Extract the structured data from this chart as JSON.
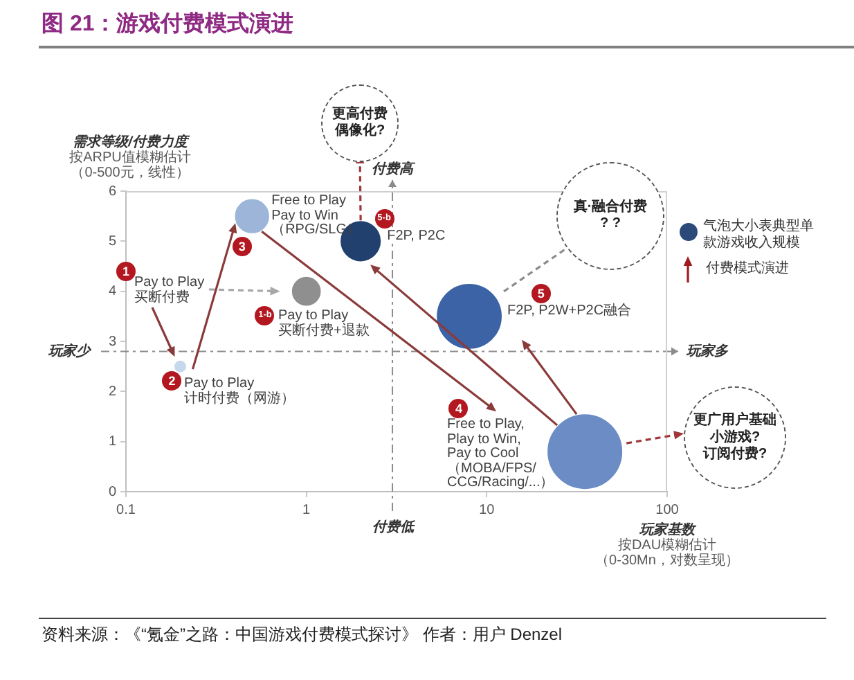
{
  "chart_data": {
    "type": "bubble",
    "title": "图 21：游戏付费模式演进",
    "xlabel": "玩家基数",
    "ylabel": "需求等级/付费力度",
    "x": [
      0.2,
      0.5,
      1,
      2,
      8,
      35
    ],
    "values": [
      2.5,
      5.5,
      4,
      5,
      3.5,
      0.8
    ],
    "sizes": [
      0.02,
      0.2,
      0.14,
      0.28,
      0.75,
      1
    ],
    "colors": [
      "#c6d9ec",
      "#9cb5d8",
      "#8f8f8f",
      "#22406e",
      "#3c63a5",
      "#6b8cc5"
    ],
    "log": "x",
    "xlim": [
      0.1,
      100
    ],
    "xticks": [
      0.1,
      1,
      10,
      100
    ],
    "ylim": [
      0,
      6
    ],
    "yticks": [
      0,
      1,
      2,
      3,
      4,
      5,
      6
    ],
    "ref_lines": [
      {
        "axis": "y",
        "value": 2.8,
        "label": "玩家多",
        "color": "#8c8c8c",
        "line_style": "dashed"
      },
      {
        "axis": "x",
        "value": 3,
        "label": "付费高",
        "color": "#8c8c8c",
        "line_style": "dashed"
      }
    ],
    "annotations": [
      {
        "text": "1",
        "x": 0.1,
        "y": 4.4
      },
      {
        "text": "2",
        "x": 0.18,
        "y": 2.2
      },
      {
        "text": "3",
        "x": 0.44,
        "y": 4.9
      },
      {
        "text": "1-b",
        "x": 0.59,
        "y": 3.5
      },
      {
        "text": "5-b",
        "x": 2.7,
        "y": 5.45
      },
      {
        "text": "4",
        "x": 7,
        "y": 1.65
      },
      {
        "text": "5",
        "x": 20,
        "y": 3.95
      },
      "Pay to Play\n买断付费",
      "Pay to Play\n计时付费（网游）",
      {
        "text": "Free to Play\nPay to Win\n（RPG/SLG）",
        "x": 0.64,
        "y": 5.5
      },
      "Pay to Play\n买断付费+退款",
      {
        "text": "F2P, P2C",
        "x": 2.8,
        "y": 5.1
      },
      {
        "text": "F2P, P2W+P2C融合",
        "x": 13,
        "y": 3.6
      },
      "Free to Play,\nPlay to Win,\nPay to Cool\n（MOBA/FPS/\nCCG/Racing/...）",
      "玩家少",
      "付费低",
      "更高付费偶像化?",
      "真·融合付费\n? ?",
      "更广用户基础",
      "小游戏?",
      "订阅付费?",
      "气泡大小表典型单款游戏收入规模",
      "付费模式演进",
      "按ARPU值模糊估计",
      "（0-500元，线性）",
      "按DAU模糊估计",
      "（0-30Mn，对数呈现）",
      "资料来源：《“氪金”之路：中国游戏付费模式探讨》 作者：用户 Denzel"
    ]
  }
}
